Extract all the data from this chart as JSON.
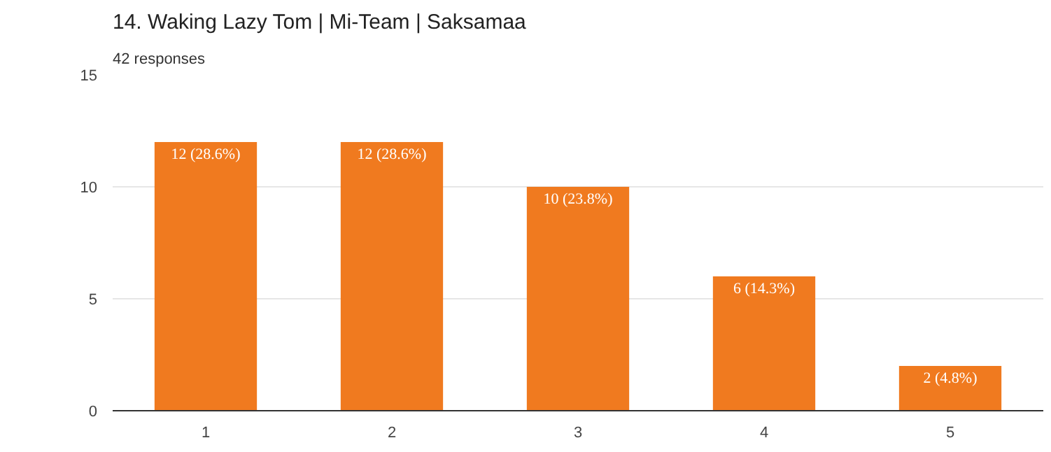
{
  "chart_data": {
    "type": "bar",
    "title": "14. Waking Lazy Tom | Mi-Team | Saksamaa",
    "subtitle": "42 responses",
    "categories": [
      "1",
      "2",
      "3",
      "4",
      "5"
    ],
    "values": [
      12,
      12,
      10,
      6,
      2
    ],
    "value_labels": [
      "12 (28.6%)",
      "12 (28.6%)",
      "10 (23.8%)",
      "6 (14.3%)",
      "2 (4.8%)"
    ],
    "color": "#f07a1f",
    "ylim": [
      0,
      15
    ],
    "yticks": [
      0,
      5,
      10,
      15
    ],
    "grid": "y"
  }
}
